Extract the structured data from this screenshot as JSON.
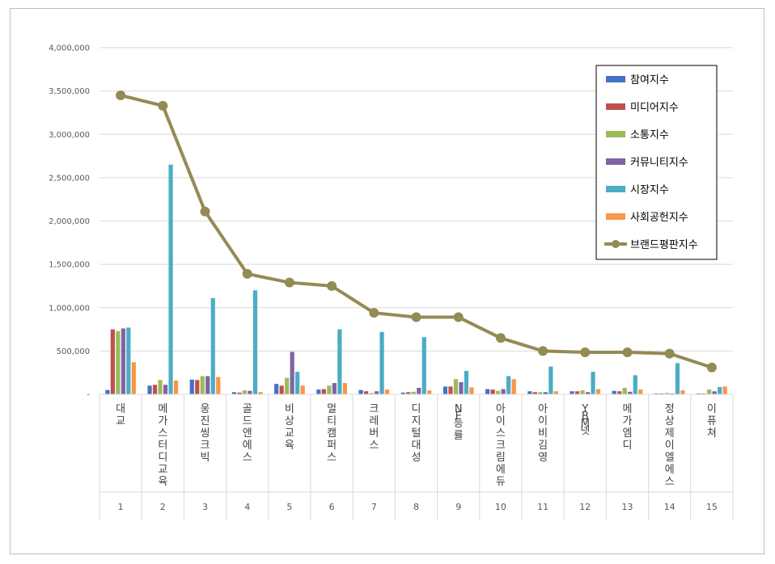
{
  "chart_data": {
    "type": "bar",
    "title": "",
    "xlabel": "",
    "ylabel": "",
    "ylim": [
      0,
      4000000
    ],
    "yticks": [
      "-",
      "500,000",
      "1,000,000",
      "1,500,000",
      "2,000,000",
      "2,500,000",
      "3,000,000",
      "3,500,000",
      "4,000,000"
    ],
    "grid": true,
    "legend_position": "top-right",
    "categories": [
      "대교",
      "메가스터디교육",
      "웅진씽크빅",
      "골드앤에스",
      "비상교육",
      "멀티캠퍼스",
      "크레버스",
      "디지털대성",
      "NE능률",
      "아이스크림에듀",
      "아이비김영",
      "YBM넷",
      "메가엠디",
      "정상제이엘에스",
      "이퓨쳐"
    ],
    "ranks": [
      "1",
      "2",
      "3",
      "4",
      "5",
      "6",
      "7",
      "8",
      "9",
      "10",
      "11",
      "12",
      "13",
      "14",
      "15"
    ],
    "series": [
      {
        "name": "참여지수",
        "type": "bar",
        "color": "#4472c4",
        "values": [
          50000,
          100000,
          170000,
          25000,
          120000,
          55000,
          50000,
          20000,
          90000,
          60000,
          35000,
          35000,
          40000,
          10000,
          10000
        ]
      },
      {
        "name": "미디어지수",
        "type": "bar",
        "color": "#c0504d",
        "values": [
          750000,
          110000,
          165000,
          20000,
          100000,
          60000,
          35000,
          25000,
          90000,
          55000,
          25000,
          35000,
          35000,
          10000,
          10000
        ]
      },
      {
        "name": "소통지수",
        "type": "bar",
        "color": "#9bbb59",
        "values": [
          730000,
          165000,
          210000,
          45000,
          190000,
          100000,
          15000,
          30000,
          175000,
          40000,
          25000,
          45000,
          75000,
          15000,
          55000
        ]
      },
      {
        "name": "커뮤니티지수",
        "type": "bar",
        "color": "#8064a2",
        "values": [
          760000,
          110000,
          210000,
          40000,
          490000,
          130000,
          35000,
          75000,
          140000,
          60000,
          25000,
          25000,
          30000,
          10000,
          35000
        ]
      },
      {
        "name": "시장지수",
        "type": "bar",
        "color": "#4bacc6",
        "values": [
          770000,
          2650000,
          1110000,
          1200000,
          260000,
          750000,
          720000,
          660000,
          270000,
          210000,
          320000,
          260000,
          220000,
          360000,
          85000
        ]
      },
      {
        "name": "사회공헌지수",
        "type": "bar",
        "color": "#f79646",
        "values": [
          370000,
          160000,
          200000,
          25000,
          100000,
          130000,
          55000,
          45000,
          80000,
          175000,
          35000,
          60000,
          55000,
          45000,
          90000
        ]
      },
      {
        "name": "브랜드평판지수",
        "type": "line",
        "color": "#948a54",
        "values": [
          3450000,
          3330000,
          2110000,
          1390000,
          1290000,
          1250000,
          940000,
          890000,
          890000,
          650000,
          500000,
          485000,
          485000,
          470000,
          310000
        ]
      }
    ]
  }
}
